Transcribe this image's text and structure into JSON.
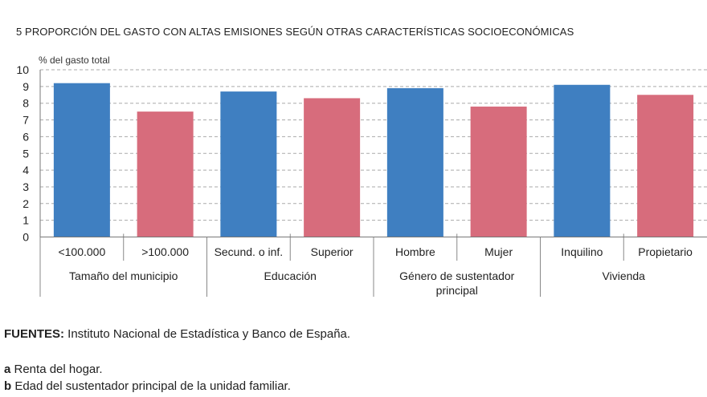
{
  "title": "5  PROPORCIÓN DEL GASTO CON ALTAS EMISIONES SEGÚN OTRAS CARACTERÍSTICAS SOCIOECONÓMICAS",
  "chart_data": {
    "type": "bar",
    "ylabel": "% del gasto total",
    "ylim": [
      0,
      10
    ],
    "yticks": [
      0,
      1,
      2,
      3,
      4,
      5,
      6,
      7,
      8,
      9,
      10
    ],
    "grid": true,
    "categories": [
      "<100.000",
      ">100.000",
      "Secund. o inf.",
      "Superior",
      "Hombre",
      "Mujer",
      "Inquilino",
      "Propietario"
    ],
    "values": [
      9.2,
      7.5,
      8.7,
      8.3,
      8.9,
      7.8,
      9.1,
      8.5
    ],
    "bar_colors": [
      "#3f7fc1",
      "#d76c7c",
      "#3f7fc1",
      "#d76c7c",
      "#3f7fc1",
      "#d76c7c",
      "#3f7fc1",
      "#d76c7c"
    ],
    "groups": [
      [
        "Tamaño del municipio"
      ],
      [
        "Educación"
      ],
      [
        "Género de sustentador",
        "principal"
      ],
      [
        "Vivienda"
      ]
    ]
  },
  "footer": {
    "sources_label": "FUENTES:",
    "sources_text": " Instituto Nacional de Estadística y Banco de España.",
    "notes": [
      {
        "key": "a",
        "text": " Renta del hogar."
      },
      {
        "key": "b",
        "text": " Edad del sustentador principal de la unidad familiar."
      }
    ]
  }
}
